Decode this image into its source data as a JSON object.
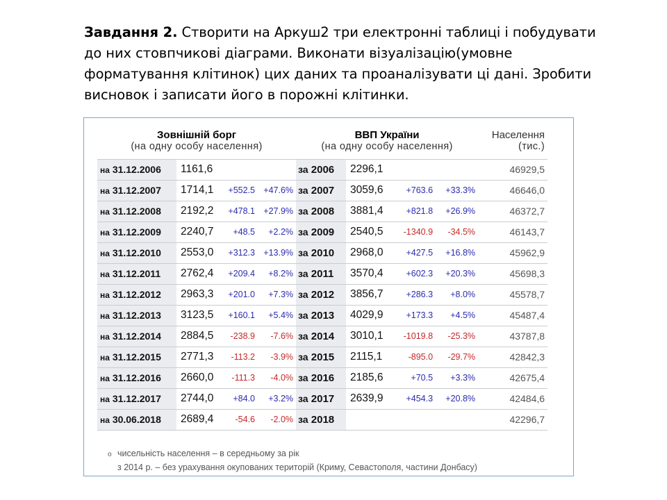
{
  "task": {
    "label": "Завдання 2.",
    "text": " Створити на Аркуш2 три електронні таблиці і побудувати до них стовпчикові діаграми. Виконати візуалізацію(умовне форматування клітинок)  цих даних  та проаналізувати ці дані. Зробити висновок і записати його в порожні клітинки."
  },
  "table": {
    "headers": {
      "debt_title": "Зовнішній борг",
      "debt_sub": "(на одну особу населення)",
      "gdp_title": "ВВП України",
      "gdp_sub": "(на одну особу населення)",
      "pop_title": "Населення",
      "pop_sub": "(тис.)"
    },
    "rows": [
      {
        "debt_pre": "на",
        "debt_date": "31.12.2006",
        "debt_val": "1161,6",
        "debt_d": "",
        "debt_p": "",
        "debt_sign": "",
        "gdp_pre": "за",
        "gdp_year": "2006",
        "gdp_val": "2296,1",
        "gdp_d": "",
        "gdp_p": "",
        "gdp_sign": "",
        "pop": "46929,5"
      },
      {
        "debt_pre": "на",
        "debt_date": "31.12.2007",
        "debt_val": "1714,1",
        "debt_d": "+552.5",
        "debt_p": "+47.6%",
        "debt_sign": "pos",
        "gdp_pre": "за",
        "gdp_year": "2007",
        "gdp_val": "3059,6",
        "gdp_d": "+763.6",
        "gdp_p": "+33.3%",
        "gdp_sign": "pos",
        "pop": "46646,0"
      },
      {
        "debt_pre": "на",
        "debt_date": "31.12.2008",
        "debt_val": "2192,2",
        "debt_d": "+478.1",
        "debt_p": "+27.9%",
        "debt_sign": "pos",
        "gdp_pre": "за",
        "gdp_year": "2008",
        "gdp_val": "3881,4",
        "gdp_d": "+821.8",
        "gdp_p": "+26.9%",
        "gdp_sign": "pos",
        "pop": "46372,7"
      },
      {
        "debt_pre": "на",
        "debt_date": "31.12.2009",
        "debt_val": "2240,7",
        "debt_d": "+48.5",
        "debt_p": "+2.2%",
        "debt_sign": "pos",
        "gdp_pre": "за",
        "gdp_year": "2009",
        "gdp_val": "2540,5",
        "gdp_d": "-1340.9",
        "gdp_p": "-34.5%",
        "gdp_sign": "neg",
        "pop": "46143,7"
      },
      {
        "debt_pre": "на",
        "debt_date": "31.12.2010",
        "debt_val": "2553,0",
        "debt_d": "+312.3",
        "debt_p": "+13.9%",
        "debt_sign": "pos",
        "gdp_pre": "за",
        "gdp_year": "2010",
        "gdp_val": "2968,0",
        "gdp_d": "+427.5",
        "gdp_p": "+16.8%",
        "gdp_sign": "pos",
        "pop": "45962,9"
      },
      {
        "debt_pre": "на",
        "debt_date": "31.12.2011",
        "debt_val": "2762,4",
        "debt_d": "+209.4",
        "debt_p": "+8.2%",
        "debt_sign": "pos",
        "gdp_pre": "за",
        "gdp_year": "2011",
        "gdp_val": "3570,4",
        "gdp_d": "+602.3",
        "gdp_p": "+20.3%",
        "gdp_sign": "pos",
        "pop": "45698,3"
      },
      {
        "debt_pre": "на",
        "debt_date": "31.12.2012",
        "debt_val": "2963,3",
        "debt_d": "+201.0",
        "debt_p": "+7.3%",
        "debt_sign": "pos",
        "gdp_pre": "за",
        "gdp_year": "2012",
        "gdp_val": "3856,7",
        "gdp_d": "+286.3",
        "gdp_p": "+8.0%",
        "gdp_sign": "pos",
        "pop": "45578,7"
      },
      {
        "debt_pre": "на",
        "debt_date": "31.12.2013",
        "debt_val": "3123,5",
        "debt_d": "+160.1",
        "debt_p": "+5.4%",
        "debt_sign": "pos",
        "gdp_pre": "за",
        "gdp_year": "2013",
        "gdp_val": "4029,9",
        "gdp_d": "+173.3",
        "gdp_p": "+4.5%",
        "gdp_sign": "pos",
        "pop": "45487,4"
      },
      {
        "debt_pre": "на",
        "debt_date": "31.12.2014",
        "debt_val": "2884,5",
        "debt_d": "-238.9",
        "debt_p": "-7.6%",
        "debt_sign": "neg",
        "gdp_pre": "за",
        "gdp_year": "2014",
        "gdp_val": "3010,1",
        "gdp_d": "-1019.8",
        "gdp_p": "-25.3%",
        "gdp_sign": "neg",
        "pop": "43787,8"
      },
      {
        "debt_pre": "на",
        "debt_date": "31.12.2015",
        "debt_val": "2771,3",
        "debt_d": "-113.2",
        "debt_p": "-3.9%",
        "debt_sign": "neg",
        "gdp_pre": "за",
        "gdp_year": "2015",
        "gdp_val": "2115,1",
        "gdp_d": "-895.0",
        "gdp_p": "-29.7%",
        "gdp_sign": "neg",
        "pop": "42842,3"
      },
      {
        "debt_pre": "на",
        "debt_date": "31.12.2016",
        "debt_val": "2660,0",
        "debt_d": "-111.3",
        "debt_p": "-4.0%",
        "debt_sign": "neg",
        "gdp_pre": "за",
        "gdp_year": "2016",
        "gdp_val": "2185,6",
        "gdp_d": "+70.5",
        "gdp_p": "+3.3%",
        "gdp_sign": "pos",
        "pop": "42675,4"
      },
      {
        "debt_pre": "на",
        "debt_date": "31.12.2017",
        "debt_val": "2744,0",
        "debt_d": "+84.0",
        "debt_p": "+3.2%",
        "debt_sign": "pos",
        "gdp_pre": "за",
        "gdp_year": "2017",
        "gdp_val": "2639,9",
        "gdp_d": "+454.3",
        "gdp_p": "+20.8%",
        "gdp_sign": "pos",
        "pop": "42484,6"
      },
      {
        "debt_pre": "на",
        "debt_date": "30.06.2018",
        "debt_val": "2689,4",
        "debt_d": "-54.6",
        "debt_p": "-2.0%",
        "debt_sign": "neg",
        "gdp_pre": "за",
        "gdp_year": "2018",
        "gdp_val": "",
        "gdp_d": "",
        "gdp_p": "",
        "gdp_sign": "",
        "pop": "42296,7"
      }
    ]
  },
  "notes": {
    "bullet": "o",
    "line1": "чисельність населення – в середньому за рік",
    "line2": "з 2014 р. – без урахування окупованих територій (Криму, Севастополя, частини Донбасу)"
  },
  "colors": {
    "positive": "#2b2bb0",
    "negative": "#c62828",
    "frame_border": "#7ea6c9",
    "header_bg": "#eaecf0"
  }
}
